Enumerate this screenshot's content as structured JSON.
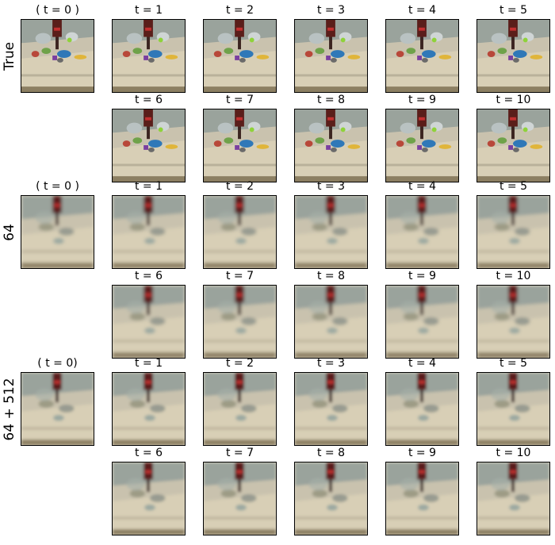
{
  "rows": [
    {
      "label": "True",
      "style": "sharp",
      "initial_title": "( t = 0 )",
      "titles": [
        "t = 1",
        "t = 2",
        "t = 3",
        "t = 4",
        "t = 5",
        "t = 6",
        "t = 7",
        "t = 8",
        "t = 9",
        "t = 10"
      ]
    },
    {
      "label": "64",
      "style": "blur",
      "initial_title": "( t = 0 )",
      "titles": [
        "t = 1",
        "t = 2",
        "t = 3",
        "t = 4",
        "t = 5",
        "t = 6",
        "t = 7",
        "t = 8",
        "t = 9",
        "t = 10"
      ]
    },
    {
      "label": "64 + 512",
      "style": "blur2",
      "initial_title": "( t = 0)",
      "titles": [
        "t = 1",
        "t = 2",
        "t = 3",
        "t = 4",
        "t = 5",
        "t = 6",
        "t = 7",
        "t = 8",
        "t = 9",
        "t = 10"
      ]
    }
  ],
  "colors": {
    "table": "#d8cfb6",
    "table_shadow": "#8c7f62",
    "robot_arm": "#5a1e1a",
    "background_wall": "#9aa39c"
  }
}
